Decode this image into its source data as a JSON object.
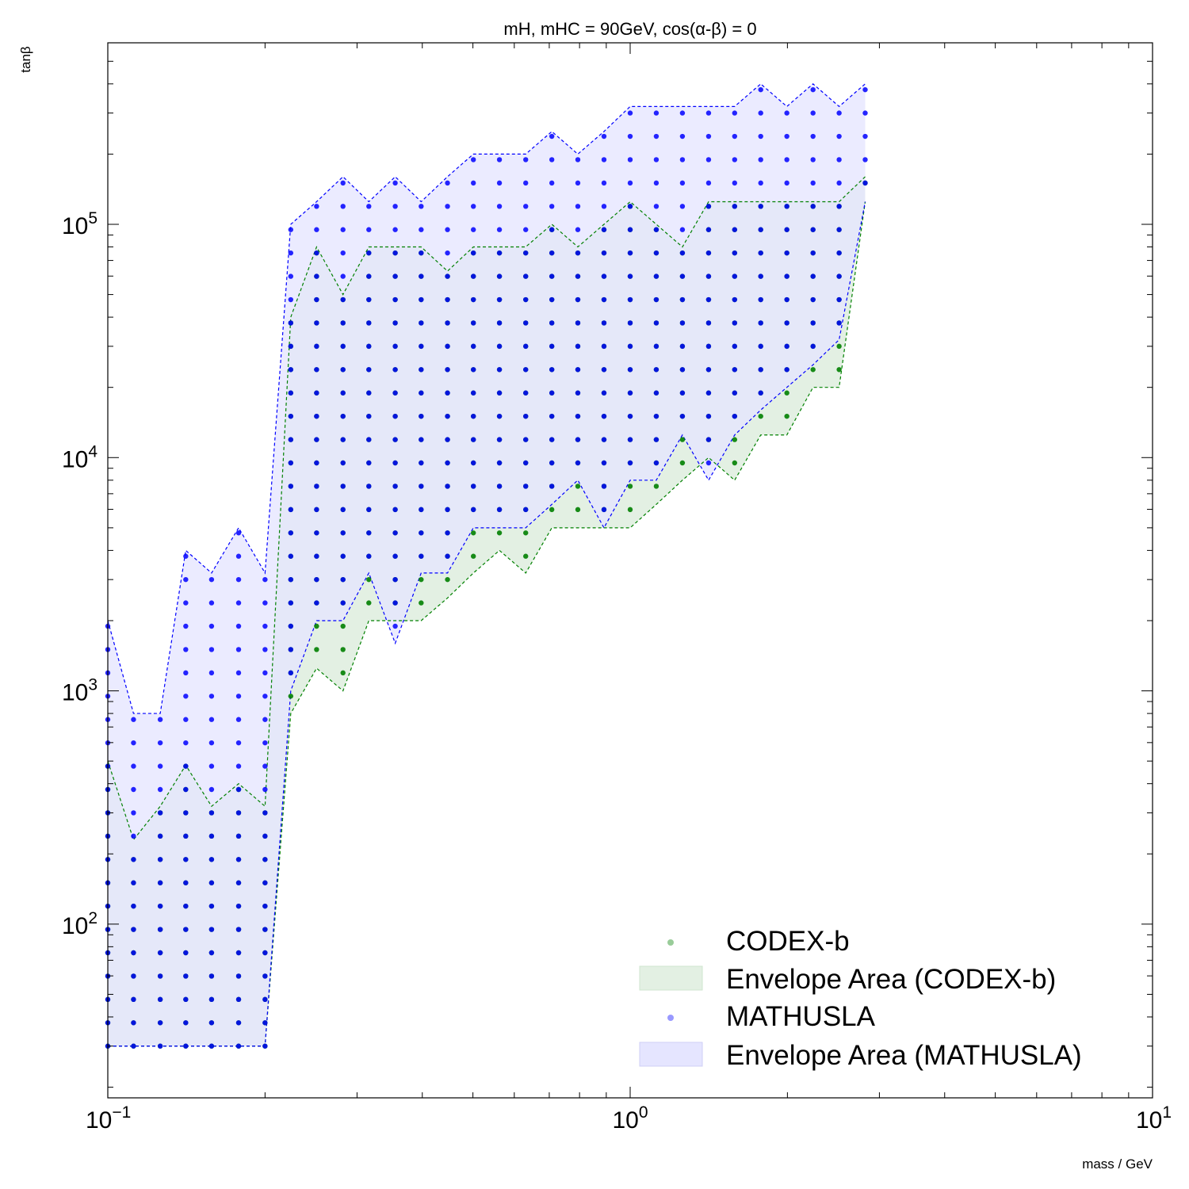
{
  "chart_data": {
    "type": "scatter",
    "title": "mH, mHC = 90GeV, cos(α-β) = 0",
    "xlabel": "mass / GeV",
    "ylabel": "tanβ",
    "xscale": "log",
    "yscale": "log",
    "xlim": [
      0.1,
      10
    ],
    "ylim": [
      18,
      600000
    ],
    "x_ticks": [
      {
        "base": "10",
        "exp": "−1"
      },
      {
        "base": "10",
        "exp": "0"
      },
      {
        "base": "10",
        "exp": "1"
      }
    ],
    "y_ticks": [
      {
        "base": "10",
        "exp": "2"
      },
      {
        "base": "10",
        "exp": "3"
      },
      {
        "base": "10",
        "exp": "4"
      },
      {
        "base": "10",
        "exp": "5"
      }
    ],
    "legend_position": "lower-right",
    "colors": {
      "codex": "#008000",
      "mathusla": "#0000ff",
      "codex_fill": "#e3f0e3",
      "mathusla_fill": "#e5e5ff"
    },
    "series": [
      {
        "name": "CODEX-b",
        "envelope_name": "Envelope Area (CODEX-b)",
        "x": [
          0.1,
          0.112,
          0.126,
          0.141,
          0.158,
          0.178,
          0.2,
          0.224,
          0.251,
          0.282,
          0.316,
          0.355,
          0.398,
          0.447,
          0.501,
          0.562,
          0.631,
          0.708,
          0.794,
          0.891,
          1.0,
          1.122,
          1.259,
          1.413,
          1.585,
          1.778,
          1.995,
          2.239,
          2.512,
          2.818
        ],
        "upper": [
          500,
          230,
          320,
          480,
          320,
          400,
          320,
          40000,
          80000,
          50000,
          80000,
          80000,
          80000,
          63000,
          80000,
          80000,
          80000,
          100000,
          80000,
          100000,
          125000,
          100000,
          80000,
          125000,
          125000,
          125000,
          125000,
          125000,
          125000,
          160000
        ],
        "lower": [
          30,
          30,
          30,
          30,
          30,
          30,
          30,
          800,
          1250,
          1000,
          2000,
          2000,
          2000,
          2500,
          3200,
          4000,
          3200,
          5000,
          5000,
          5000,
          5000,
          6300,
          8000,
          10000,
          8000,
          12500,
          12500,
          20000,
          20000,
          125000
        ]
      },
      {
        "name": "MATHUSLA",
        "envelope_name": "Envelope Area (MATHUSLA)",
        "x": [
          0.1,
          0.112,
          0.126,
          0.141,
          0.158,
          0.178,
          0.2,
          0.224,
          0.251,
          0.282,
          0.316,
          0.355,
          0.398,
          0.447,
          0.501,
          0.562,
          0.631,
          0.708,
          0.794,
          0.891,
          1.0,
          1.122,
          1.259,
          1.413,
          1.585,
          1.778,
          1.995,
          2.239,
          2.512,
          2.818
        ],
        "upper": [
          2000,
          800,
          800,
          4000,
          3200,
          5000,
          3200,
          100000,
          125000,
          160000,
          125000,
          160000,
          125000,
          160000,
          200000,
          200000,
          200000,
          250000,
          200000,
          250000,
          320000,
          320000,
          320000,
          320000,
          320000,
          400000,
          320000,
          400000,
          320000,
          400000
        ],
        "lower": [
          30,
          30,
          30,
          30,
          30,
          30,
          30,
          1000,
          2000,
          2000,
          3200,
          1600,
          3200,
          3200,
          5000,
          5000,
          5000,
          6300,
          8000,
          5000,
          8000,
          8000,
          12500,
          8000,
          12500,
          16000,
          20000,
          25000,
          32000,
          125000
        ]
      }
    ]
  }
}
